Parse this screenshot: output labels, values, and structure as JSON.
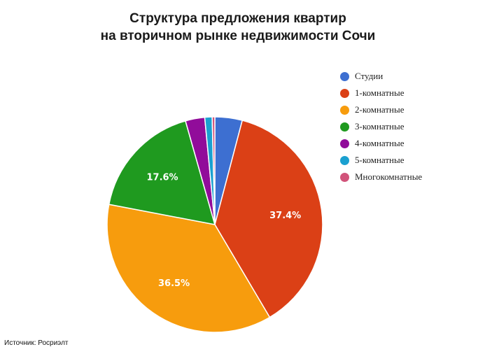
{
  "chart_data": {
    "type": "pie",
    "title_line1": "Структура предложения квартир",
    "title_line2": "на вторичном рынке недвижимости Сочи",
    "slices": [
      {
        "name": "Студии",
        "value": 4.1,
        "color": "#3d6fd1",
        "label": ""
      },
      {
        "name": "1-комнатные",
        "value": 37.4,
        "color": "#db4016",
        "label": "37.4%"
      },
      {
        "name": "2-комнатные",
        "value": 36.5,
        "color": "#f79c0d",
        "label": "36.5%"
      },
      {
        "name": "3-комнатные",
        "value": 17.6,
        "color": "#1f9a1f",
        "label": "17.6%"
      },
      {
        "name": "4-комнатные",
        "value": 2.9,
        "color": "#910c9a",
        "label": ""
      },
      {
        "name": "5-комнатные",
        "value": 1.1,
        "color": "#1aa0d0",
        "label": ""
      },
      {
        "name": "Многокомнатные",
        "value": 0.4,
        "color": "#d1537a",
        "label": ""
      }
    ],
    "legend_position": "right"
  },
  "source_text": "Источник: Росриэлт"
}
